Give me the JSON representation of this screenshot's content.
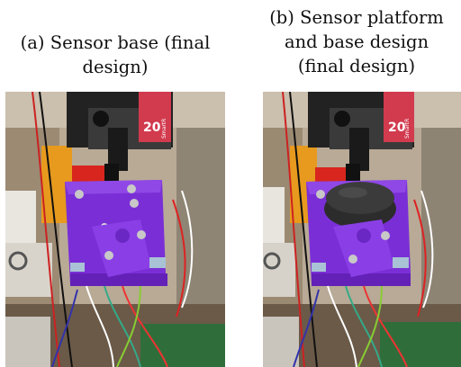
{
  "figure": {
    "panels": [
      {
        "caption_line1": "(a) Sensor base (final",
        "caption_line2": "design)",
        "servo_label_num": "20",
        "servo_label_brand": "SmartR"
      },
      {
        "caption_line1": "(b) Sensor platform",
        "caption_line2": "and base design",
        "caption_line3": "(final design)",
        "servo_label_num": "20",
        "servo_label_brand": "SmartR"
      }
    ]
  },
  "colors": {
    "purple_part": "#7a2fd6",
    "servo_label": "#d23a4e",
    "red_part": "#d8261e",
    "orange_part": "#e79a1e",
    "black_foam": "#2a2a2a"
  }
}
